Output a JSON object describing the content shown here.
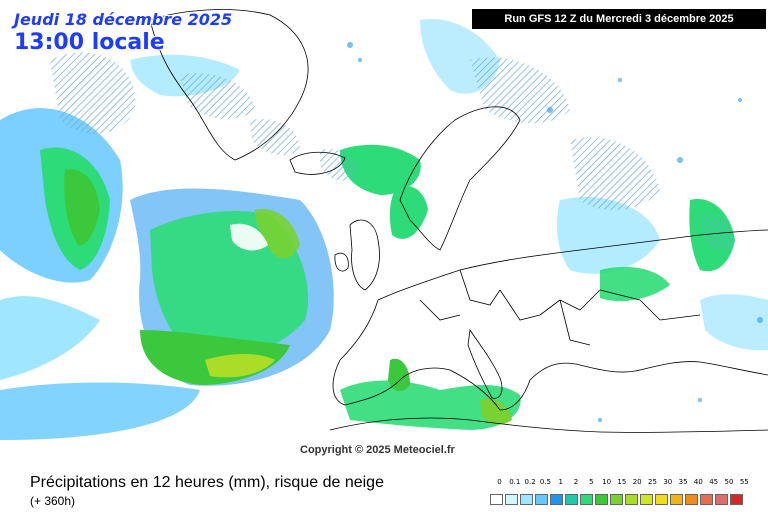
{
  "header": {
    "date_line": "Jeudi 18 décembre 2025",
    "time_line": "13:00 locale",
    "run_info": "Run GFS 12 Z du Mercredi 3 décembre 2025"
  },
  "copyright": "Copyright © 2025 Meteociel.fr",
  "footer": {
    "title": "Précipitations en 12 heures (mm), risque de neige",
    "subtitle": "(+ 360h)"
  },
  "legend": {
    "labels": [
      "0",
      "0.1",
      "0.2",
      "0.5",
      "1",
      "2",
      "5",
      "10",
      "15",
      "20",
      "25",
      "30",
      "35",
      "40",
      "45",
      "50",
      "55"
    ],
    "colors": [
      "#ffffff",
      "#d2f5ff",
      "#a0e6ff",
      "#64c8ff",
      "#1e96f0",
      "#23c8aa",
      "#2ddc78",
      "#3cc83c",
      "#78d232",
      "#aadc28",
      "#d2e628",
      "#f0dc1e",
      "#f0b414",
      "#f08c1e",
      "#e66e50",
      "#dc6e6e",
      "#d22828"
    ]
  },
  "map": {
    "land_color": "#ffffff",
    "sea_color": "#ffffff",
    "border_color": "#000000"
  }
}
